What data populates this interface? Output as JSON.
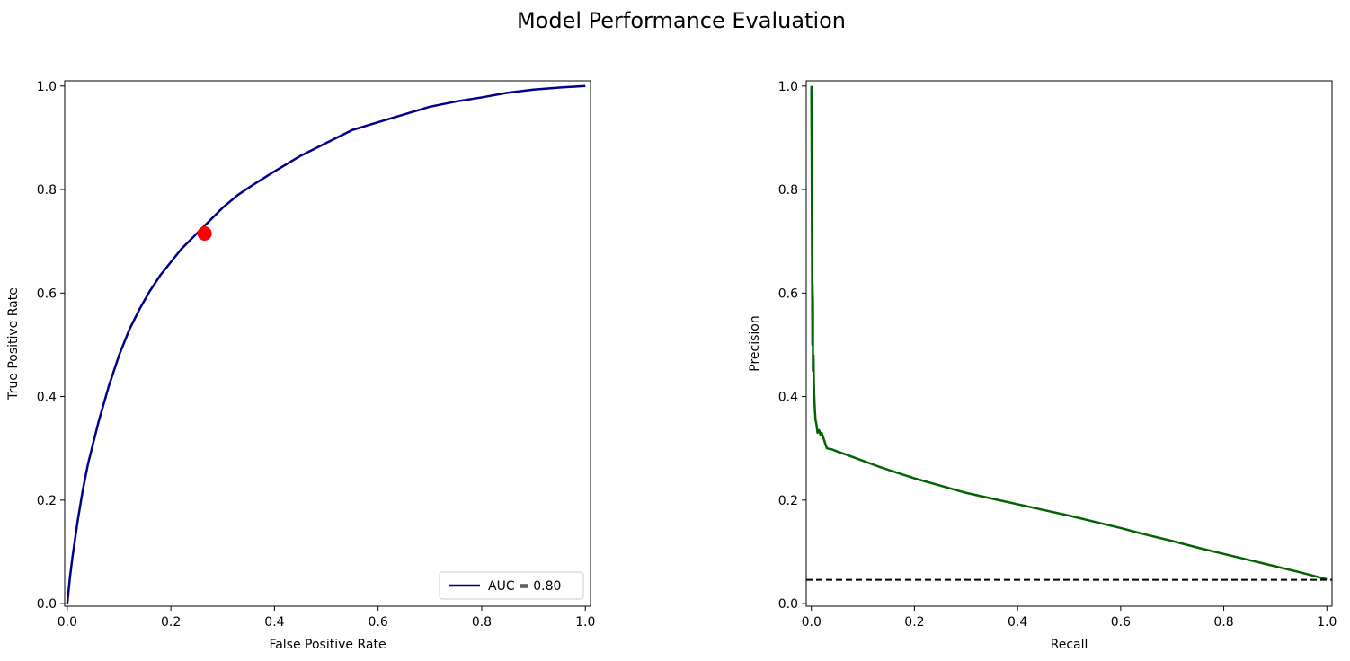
{
  "figure": {
    "title": "Model Performance Evaluation"
  },
  "colors": {
    "roc_line": "#00008b",
    "operating_point": "#ff0000",
    "pr_line": "#006400",
    "baseline": "#000000"
  },
  "chart_data": [
    {
      "type": "line",
      "title": "",
      "xlabel": "False Positive Rate",
      "ylabel": "True Positive Rate",
      "xlim": [
        -0.005,
        1.01
      ],
      "ylim": [
        -0.005,
        1.01
      ],
      "xticks": [
        "0.0",
        "0.2",
        "0.4",
        "0.6",
        "0.8",
        "1.0"
      ],
      "yticks": [
        "0.0",
        "0.2",
        "0.4",
        "0.6",
        "0.8",
        "1.0"
      ],
      "grid": false,
      "legend": {
        "placement": "lower-right",
        "entries": [
          "AUC = 0.80"
        ]
      },
      "series": [
        {
          "name": "AUC = 0.80",
          "x": [
            0.0,
            0.005,
            0.01,
            0.02,
            0.03,
            0.04,
            0.05,
            0.06,
            0.08,
            0.1,
            0.12,
            0.14,
            0.16,
            0.18,
            0.2,
            0.22,
            0.24,
            0.26,
            0.28,
            0.3,
            0.33,
            0.36,
            0.4,
            0.45,
            0.5,
            0.55,
            0.6,
            0.65,
            0.7,
            0.75,
            0.8,
            0.85,
            0.9,
            0.95,
            1.0
          ],
          "y": [
            0.0,
            0.05,
            0.09,
            0.16,
            0.22,
            0.27,
            0.31,
            0.35,
            0.42,
            0.48,
            0.53,
            0.57,
            0.605,
            0.635,
            0.66,
            0.685,
            0.705,
            0.725,
            0.745,
            0.765,
            0.79,
            0.81,
            0.835,
            0.865,
            0.89,
            0.915,
            0.93,
            0.945,
            0.96,
            0.97,
            0.978,
            0.987,
            0.993,
            0.997,
            1.0
          ]
        }
      ],
      "points": [
        {
          "x": 0.265,
          "y": 0.715
        }
      ]
    },
    {
      "type": "line",
      "title": "",
      "xlabel": "Recall",
      "ylabel": "Precision",
      "xlim": [
        -0.01,
        1.01
      ],
      "ylim": [
        -0.005,
        1.01
      ],
      "xticks": [
        "0.0",
        "0.2",
        "0.4",
        "0.6",
        "0.8",
        "1.0"
      ],
      "yticks": [
        "0.0",
        "0.2",
        "0.4",
        "0.6",
        "0.8",
        "1.0"
      ],
      "grid": false,
      "series": [
        {
          "x": [
            0.0,
            0.001,
            0.002,
            0.002,
            0.003,
            0.003,
            0.004,
            0.005,
            0.006,
            0.007,
            0.008,
            0.01,
            0.012,
            0.015,
            0.018,
            0.02,
            0.025,
            0.03,
            0.04,
            0.05,
            0.07,
            0.1,
            0.13,
            0.16,
            0.2,
            0.25,
            0.3,
            0.35,
            0.4,
            0.45,
            0.5,
            0.55,
            0.6,
            0.65,
            0.7,
            0.75,
            0.8,
            0.85,
            0.9,
            0.95,
            1.0
          ],
          "y": [
            1.0,
            0.75,
            0.5,
            0.62,
            0.58,
            0.45,
            0.48,
            0.42,
            0.39,
            0.37,
            0.355,
            0.345,
            0.33,
            0.335,
            0.325,
            0.33,
            0.315,
            0.3,
            0.298,
            0.294,
            0.287,
            0.276,
            0.265,
            0.255,
            0.242,
            0.228,
            0.214,
            0.203,
            0.192,
            0.181,
            0.17,
            0.158,
            0.146,
            0.133,
            0.121,
            0.108,
            0.096,
            0.084,
            0.072,
            0.06,
            0.047
          ]
        }
      ],
      "baseline": {
        "y": 0.046,
        "style": "dashed"
      }
    }
  ]
}
